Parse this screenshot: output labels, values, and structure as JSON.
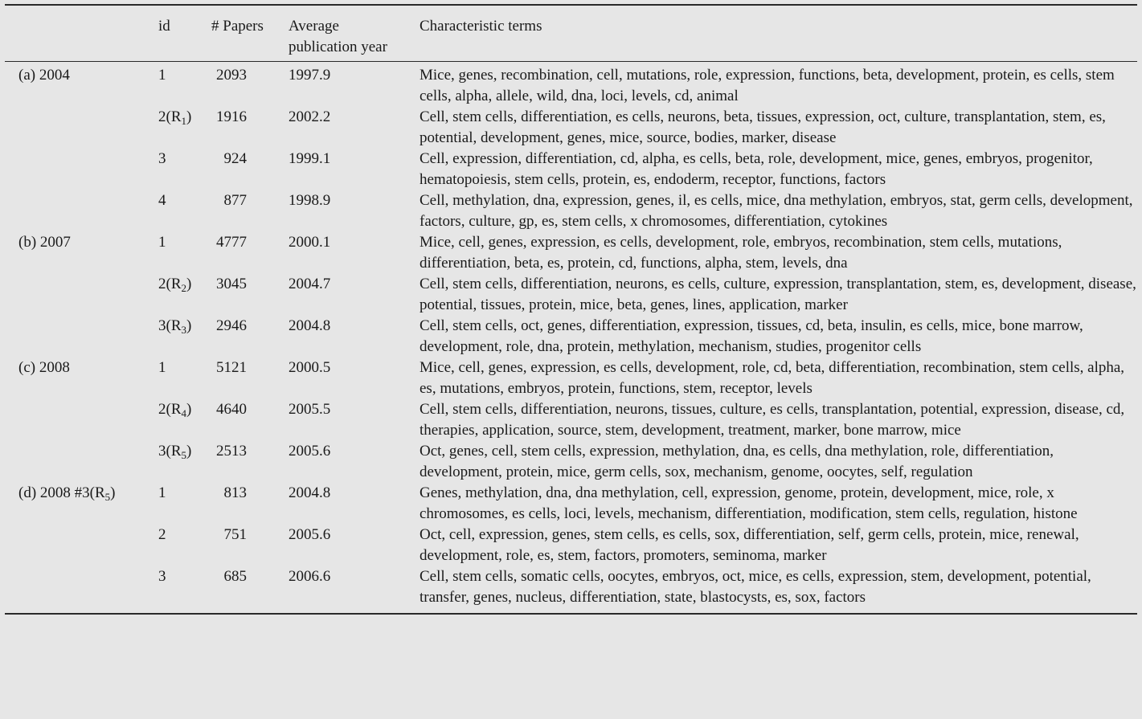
{
  "headers": {
    "id": "id",
    "papers": "# Papers",
    "year_line1": "Average",
    "year_line2": "publication year",
    "terms": "Characteristic terms"
  },
  "sections": [
    {
      "label": "(a) 2004",
      "rows": [
        {
          "id": "1",
          "id_sub": "",
          "papers": "2093",
          "year": "1997.9",
          "terms": "Mice, genes, recombination, cell, mutations, role, expression, functions, beta, development, protein, es cells, stem cells, alpha, allele, wild, dna, loci, levels, cd, animal"
        },
        {
          "id": "2(R",
          "id_sub": "1",
          "papers": "1916",
          "year": "2002.2",
          "terms": "Cell, stem cells, differentiation, es cells, neurons, beta, tissues, expression, oct, culture, transplantation, stem, es, potential, development, genes, mice, source, bodies, marker, disease"
        },
        {
          "id": "3",
          "id_sub": "",
          "papers": "924",
          "year": "1999.1",
          "terms": "Cell, expression, differentiation, cd, alpha, es cells, beta, role, development, mice, genes, embryos, progenitor, hematopoiesis, stem cells, protein, es, endoderm, receptor, functions, factors"
        },
        {
          "id": "4",
          "id_sub": "",
          "papers": "877",
          "year": "1998.9",
          "terms": "Cell, methylation, dna, expression, genes, il, es cells, mice, dna methylation, embryos, stat, germ cells, development, factors, culture, gp, es, stem cells, x chromosomes, differentiation, cytokines"
        }
      ]
    },
    {
      "label": "(b) 2007",
      "rows": [
        {
          "id": "1",
          "id_sub": "",
          "papers": "4777",
          "year": "2000.1",
          "terms": "Mice, cell, genes, expression, es cells, development, role, embryos, recombination, stem cells, mutations, differentiation, beta, es, protein, cd, functions, alpha, stem, levels, dna"
        },
        {
          "id": "2(R",
          "id_sub": "2",
          "papers": "3045",
          "year": "2004.7",
          "terms": "Cell, stem cells, differentiation, neurons, es cells, culture, expression, transplantation, stem, es, development, disease, potential, tissues, protein, mice, beta, genes, lines, application, marker"
        },
        {
          "id": "3(R",
          "id_sub": "3",
          "papers": "2946",
          "year": "2004.8",
          "terms": "Cell, stem cells, oct, genes, differentiation, expression, tissues, cd, beta, insulin, es cells, mice, bone marrow, development, role, dna, protein, methylation, mechanism, studies, progenitor cells"
        }
      ]
    },
    {
      "label": "(c) 2008",
      "rows": [
        {
          "id": "1",
          "id_sub": "",
          "papers": "5121",
          "year": "2000.5",
          "terms": "Mice, cell, genes, expression, es cells, development, role, cd, beta, differentiation, recombination, stem cells, alpha, es, mutations, embryos, protein, functions, stem, receptor, levels"
        },
        {
          "id": "2(R",
          "id_sub": "4",
          "papers": "4640",
          "year": "2005.5",
          "terms": "Cell, stem cells, differentiation, neurons, tissues, culture, es cells, transplantation, potential, expression, disease, cd, therapies, application, source, stem, development, treatment, marker, bone marrow, mice"
        },
        {
          "id": "3(R",
          "id_sub": "5",
          "papers": "2513",
          "year": "2005.6",
          "terms": "Oct, genes, cell, stem cells, expression, methylation, dna, es cells, dna methylation, role, differentiation, development, protein, mice, germ cells, sox, mechanism, genome, oocytes, self, regulation"
        }
      ]
    },
    {
      "label": "(d) 2008 #3(R",
      "label_sub": "5",
      "label_end": ")",
      "rows": [
        {
          "id": "1",
          "id_sub": "",
          "papers": "813",
          "year": "2004.8",
          "terms": "Genes, methylation, dna, dna methylation, cell, expression, genome, protein, development, mice, role, x chromosomes, es cells, loci, levels, mechanism, differentiation, modification, stem cells, regulation, histone"
        },
        {
          "id": "2",
          "id_sub": "",
          "papers": "751",
          "year": "2005.6",
          "terms": "Oct, cell, expression, genes, stem cells, es cells, sox, differentiation, self, germ cells, protein, mice, renewal, development, role, es, stem, factors, promoters, seminoma, marker"
        },
        {
          "id": "3",
          "id_sub": "",
          "papers": "685",
          "year": "2006.6",
          "terms": "Cell, stem cells, somatic cells, oocytes, embryos, oct, mice, es cells, expression, stem, development, potential, transfer, genes, nucleus, differentiation, state, blastocysts, es, sox, factors"
        }
      ]
    }
  ]
}
